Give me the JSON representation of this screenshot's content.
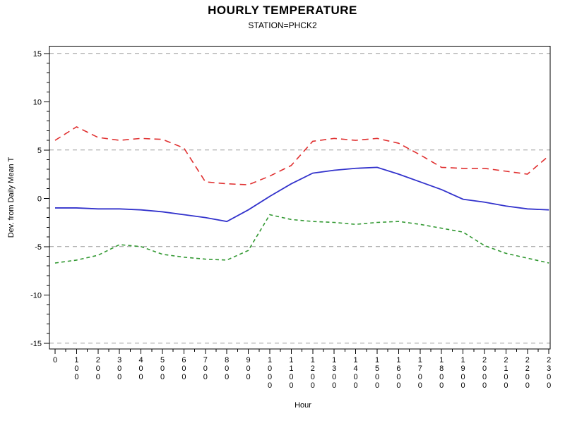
{
  "header": {
    "title": "HOURLY TEMPERATURE",
    "subtitle": "STATION=PHCK2"
  },
  "chart_data": {
    "type": "line",
    "title": "HOURLY TEMPERATURE",
    "subtitle": "STATION=PHCK2",
    "xlabel": "Hour",
    "ylabel": "Dev. from Daily Mean T",
    "x": [
      0,
      1,
      2,
      3,
      4,
      5,
      6,
      7,
      8,
      9,
      10,
      11,
      12,
      13,
      14,
      15,
      16,
      17,
      18,
      19,
      20,
      21,
      22,
      23
    ],
    "xtick_labels": [
      "0",
      "100",
      "200",
      "300",
      "400",
      "500",
      "600",
      "700",
      "800",
      "900",
      "1000",
      "1100",
      "1200",
      "1300",
      "1400",
      "1500",
      "1600",
      "1700",
      "1800",
      "1900",
      "2000",
      "2100",
      "2200",
      "2300"
    ],
    "yticks": [
      15,
      10,
      5,
      0,
      -5,
      -10,
      -15
    ],
    "ylim": [
      -15.6,
      15.7
    ],
    "reference_lines": [
      15,
      5,
      -5,
      -15
    ],
    "grid": "horizontal dashed reference lines only",
    "legend": "none",
    "series": [
      {
        "name": "upper-dashed-red",
        "color": "#e03030",
        "dash": "9,6",
        "width": 1.6,
        "values": [
          6.0,
          7.4,
          6.3,
          6.0,
          6.2,
          6.1,
          5.2,
          1.7,
          1.5,
          1.4,
          2.3,
          3.4,
          5.9,
          6.2,
          6.0,
          6.2,
          5.7,
          4.5,
          3.2,
          3.1,
          3.1,
          2.8,
          2.5,
          4.4
        ]
      },
      {
        "name": "mean-solid-blue",
        "color": "#3333cc",
        "dash": "",
        "width": 1.8,
        "values": [
          -1.0,
          -1.0,
          -1.1,
          -1.1,
          -1.2,
          -1.4,
          -1.7,
          -2.0,
          -2.4,
          -1.2,
          0.2,
          1.5,
          2.6,
          2.9,
          3.1,
          3.2,
          2.5,
          1.7,
          0.9,
          -0.1,
          -0.4,
          -0.8,
          -1.1,
          -1.2
        ]
      },
      {
        "name": "lower-dashed-green",
        "color": "#339933",
        "dash": "5,4",
        "width": 1.6,
        "values": [
          -6.7,
          -6.4,
          -5.9,
          -4.8,
          -5.0,
          -5.8,
          -6.1,
          -6.3,
          -6.4,
          -5.4,
          -1.7,
          -2.2,
          -2.4,
          -2.5,
          -2.7,
          -2.5,
          -2.4,
          -2.7,
          -3.1,
          -3.5,
          -4.9,
          -5.7,
          -6.2,
          -6.7
        ]
      }
    ],
    "axis_color": "#000000",
    "reference_line_color": "#999999"
  }
}
